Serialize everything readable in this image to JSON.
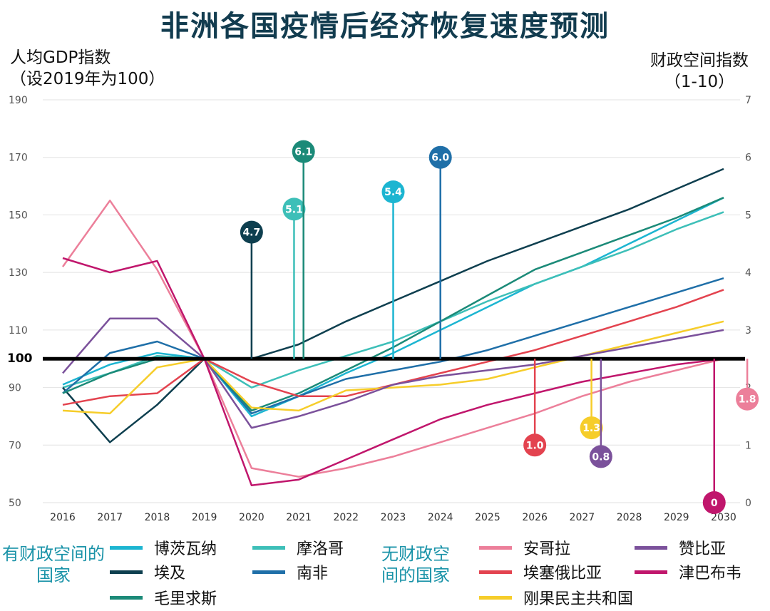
{
  "title": "非洲各国疫情后经济恢复速度预测",
  "left_axis_title": [
    "人均GDP指数",
    "（设2019年为100）"
  ],
  "right_axis_title": [
    "财政空间指数",
    "（1-10）"
  ],
  "legend": {
    "group_with": "有财政空间的国家",
    "group_without": "无财政空间的国家"
  },
  "chart_data": {
    "type": "line",
    "title": "非洲各国疫情后经济恢复速度预测",
    "xlabel": "",
    "ylabel": "人均GDP指数（设2019年为100）",
    "y2label": "财政空间指数（1-10）",
    "x": [
      2016,
      2017,
      2018,
      2019,
      2020,
      2021,
      2022,
      2023,
      2024,
      2025,
      2026,
      2027,
      2028,
      2029,
      2030
    ],
    "ylim": [
      50,
      190
    ],
    "yticks": [
      50,
      70,
      90,
      100,
      110,
      130,
      150,
      170,
      190
    ],
    "y2lim": [
      0,
      7
    ],
    "y2ticks": [
      0,
      1,
      2,
      3,
      4,
      5,
      6,
      7
    ],
    "baseline": 100,
    "series": [
      {
        "name": "博茨瓦纳",
        "group": "with",
        "color": "#1cb5d1",
        "values": [
          91,
          98,
          102,
          100,
          80,
          87,
          95,
          102,
          110,
          118,
          126,
          132,
          140,
          148,
          156
        ]
      },
      {
        "name": "摩洛哥",
        "group": "with",
        "color": "#3dbfb8",
        "values": [
          90,
          95,
          101,
          100,
          90,
          96,
          101,
          106,
          113,
          120,
          126,
          132,
          138,
          145,
          151
        ]
      },
      {
        "name": "埃及",
        "group": "with",
        "color": "#0e3f4f",
        "values": [
          90,
          71,
          84,
          100,
          100,
          105,
          113,
          120,
          127,
          134,
          140,
          146,
          152,
          159,
          166
        ]
      },
      {
        "name": "南非",
        "group": "with",
        "color": "#1f6fa8",
        "values": [
          88,
          102,
          106,
          100,
          81,
          87,
          93,
          96,
          99,
          103,
          108,
          113,
          118,
          123,
          128
        ]
      },
      {
        "name": "毛里求斯",
        "group": "with",
        "color": "#1b8a78",
        "values": [
          88,
          95,
          100,
          100,
          82,
          88,
          96,
          104,
          113,
          122,
          131,
          137,
          143,
          149,
          156
        ]
      },
      {
        "name": "安哥拉",
        "group": "without",
        "color": "#ec7f9a",
        "values": [
          132,
          155,
          131,
          100,
          62,
          59,
          62,
          66,
          71,
          76,
          81,
          87,
          92,
          96,
          100
        ]
      },
      {
        "name": "埃塞俄比亚",
        "group": "without",
        "color": "#e3434f",
        "values": [
          84,
          87,
          88,
          100,
          92,
          87,
          87,
          91,
          95,
          99,
          103,
          108,
          113,
          118,
          124
        ]
      },
      {
        "name": "刚果民主共和国",
        "group": "without",
        "color": "#f6cd2a",
        "values": [
          82,
          81,
          97,
          100,
          83,
          82,
          89,
          90,
          91,
          93,
          97,
          101,
          105,
          109,
          113
        ]
      },
      {
        "name": "赞比亚",
        "group": "without",
        "color": "#7b519b",
        "values": [
          95,
          114,
          114,
          100,
          76,
          80,
          85,
          91,
          94,
          96,
          98,
          101,
          104,
          107,
          110
        ]
      },
      {
        "name": "津巴布韦",
        "group": "without",
        "color": "#c0166c",
        "values": [
          135,
          130,
          134,
          100,
          56,
          58,
          65,
          72,
          79,
          84,
          88,
          92,
          95,
          98,
          100
        ]
      }
    ],
    "fiscal_space_markers": [
      {
        "country": "埃及",
        "label": "4.7",
        "value": 4.7,
        "year": 2020,
        "color": "#0e3f4f"
      },
      {
        "country": "摩洛哥",
        "label": "5.1",
        "value": 5.1,
        "year": 2020.9,
        "color": "#3dbfb8"
      },
      {
        "country": "毛里求斯",
        "label": "6.1",
        "value": 6.1,
        "year": 2021.1,
        "color": "#1b8a78"
      },
      {
        "country": "博茨瓦纳",
        "label": "5.4",
        "value": 5.4,
        "year": 2023,
        "color": "#1cb5d1"
      },
      {
        "country": "南非",
        "label": "6.0",
        "value": 6.0,
        "year": 2024,
        "color": "#1f6fa8"
      },
      {
        "country": "埃塞俄比亚",
        "label": "1.0",
        "value": 1.0,
        "year": 2026,
        "color": "#e3434f"
      },
      {
        "country": "刚果民主共和国",
        "label": "1.3",
        "value": 1.3,
        "year": 2027.2,
        "color": "#f6cd2a"
      },
      {
        "country": "赞比亚",
        "label": "0.8",
        "value": 0.8,
        "year": 2027.4,
        "color": "#7b519b"
      },
      {
        "country": "津巴布韦",
        "label": "0",
        "value": 0,
        "year": 2029.8,
        "color": "#c0166c"
      },
      {
        "country": "安哥拉",
        "label": "1.8",
        "value": 1.8,
        "year": 2030.5,
        "color": "#ec7f9a"
      }
    ]
  }
}
